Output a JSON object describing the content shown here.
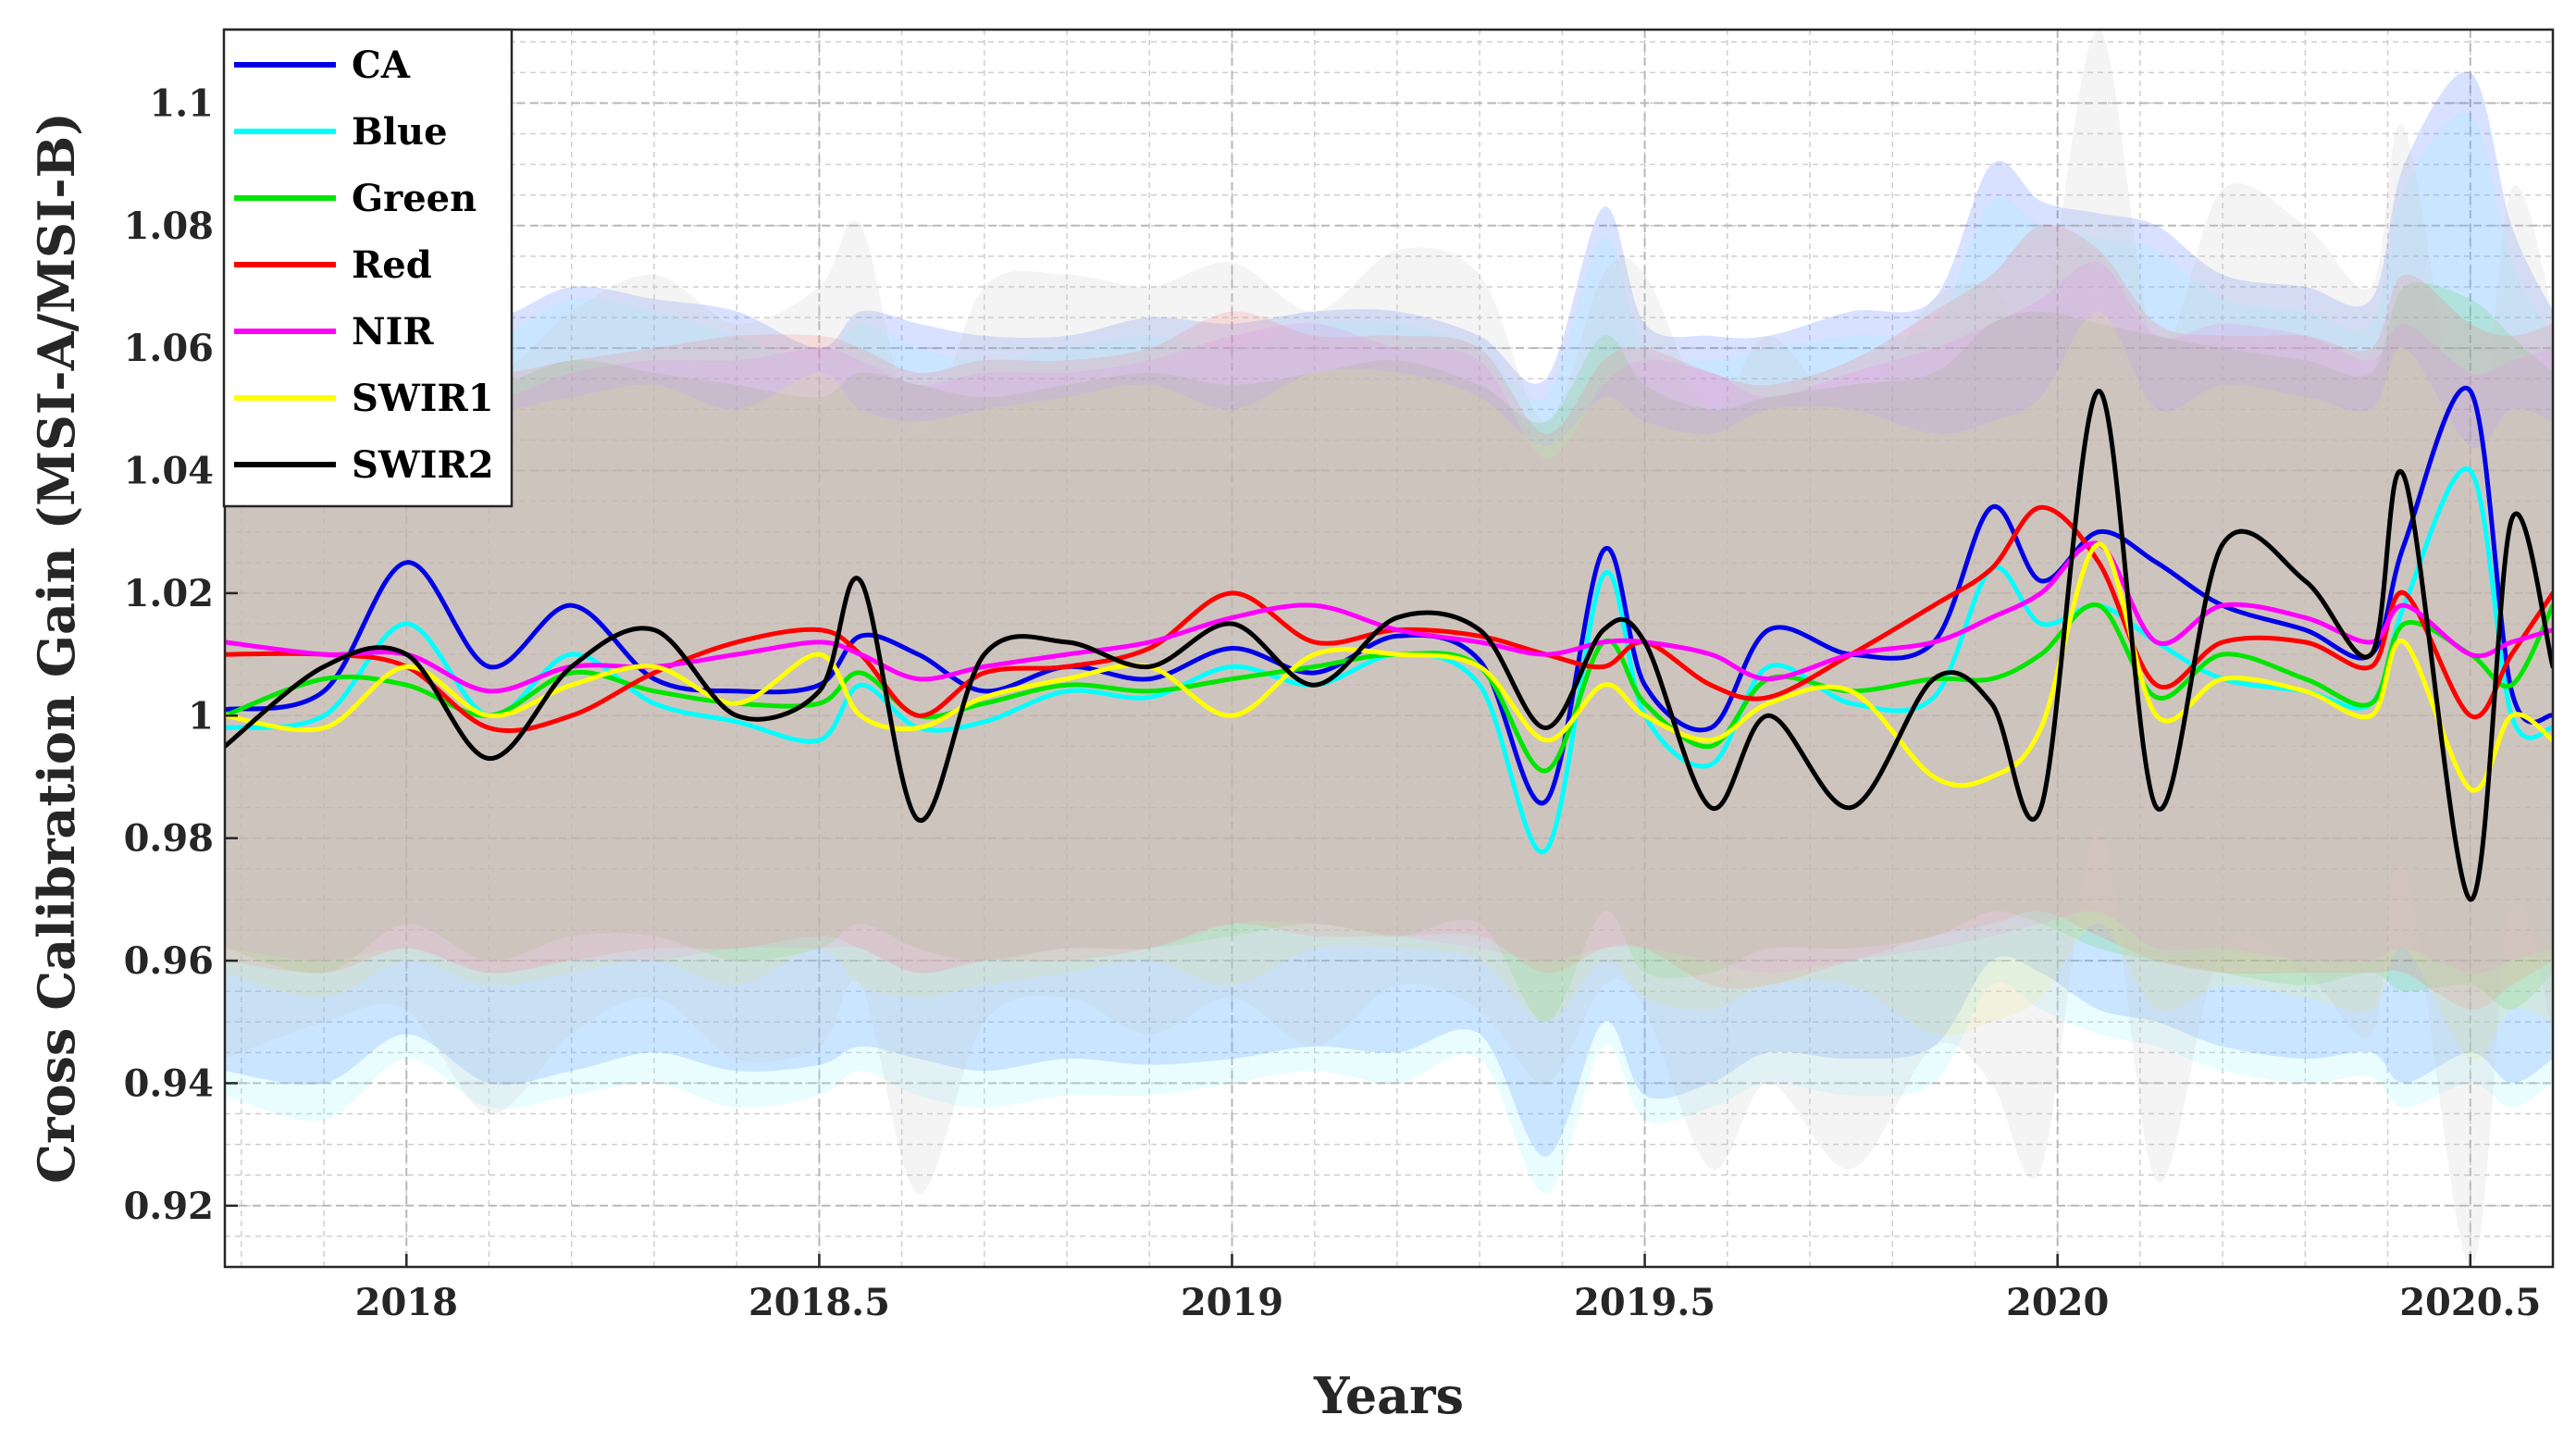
{
  "chart_data": {
    "type": "line",
    "title": "",
    "xlabel": "Years",
    "ylabel": "Cross Calibration Gain (MSI-A/MSI-B)",
    "xlim": [
      2017.78,
      2020.6
    ],
    "ylim": [
      0.91,
      1.112
    ],
    "grid": true,
    "legend_position": "top-left",
    "x_ticks": [
      2018,
      2018.5,
      2019,
      2019.5,
      2020,
      2020.5
    ],
    "x_tick_labels": [
      "2018",
      "2018.5",
      "2019",
      "2019.5",
      "2020",
      "2020.5"
    ],
    "y_ticks": [
      0.92,
      0.94,
      0.96,
      0.98,
      1.0,
      1.02,
      1.04,
      1.06,
      1.08,
      1.1
    ],
    "y_tick_labels": [
      "0.92",
      "0.94",
      "0.96",
      "0.98",
      "1",
      "1.02",
      "1.04",
      "1.06",
      "1.08",
      "1.1"
    ],
    "x": [
      2017.78,
      2017.9,
      2018.0,
      2018.1,
      2018.2,
      2018.3,
      2018.4,
      2018.5,
      2018.55,
      2018.62,
      2018.7,
      2018.8,
      2018.9,
      2019.0,
      2019.1,
      2019.2,
      2019.3,
      2019.38,
      2019.45,
      2019.5,
      2019.58,
      2019.65,
      2019.75,
      2019.85,
      2019.92,
      2019.98,
      2020.05,
      2020.12,
      2020.2,
      2020.3,
      2020.38,
      2020.42,
      2020.5,
      2020.55,
      2020.6
    ],
    "series": [
      {
        "name": "CA",
        "color": "#0000e6",
        "band_color": "#3d6bff",
        "values": [
          1.001,
          1.004,
          1.025,
          1.008,
          1.018,
          1.006,
          1.004,
          1.005,
          1.013,
          1.01,
          1.004,
          1.008,
          1.006,
          1.011,
          1.007,
          1.013,
          1.009,
          0.986,
          1.027,
          1.005,
          0.998,
          1.014,
          1.01,
          1.012,
          1.034,
          1.022,
          1.03,
          1.025,
          1.018,
          1.014,
          1.01,
          1.028,
          1.053,
          1.004,
          1.0
        ],
        "upper": [
          1.064,
          1.07,
          1.072,
          1.065,
          1.07,
          1.068,
          1.066,
          1.06,
          1.066,
          1.064,
          1.062,
          1.062,
          1.065,
          1.064,
          1.066,
          1.066,
          1.062,
          1.055,
          1.083,
          1.064,
          1.062,
          1.062,
          1.066,
          1.068,
          1.09,
          1.084,
          1.082,
          1.08,
          1.072,
          1.07,
          1.068,
          1.09,
          1.105,
          1.08,
          1.066
        ],
        "lower": [
          0.942,
          0.94,
          0.948,
          0.94,
          0.942,
          0.945,
          0.942,
          0.943,
          0.946,
          0.944,
          0.942,
          0.944,
          0.943,
          0.944,
          0.946,
          0.945,
          0.948,
          0.928,
          0.95,
          0.938,
          0.94,
          0.945,
          0.944,
          0.946,
          0.96,
          0.958,
          0.952,
          0.95,
          0.946,
          0.944,
          0.945,
          0.94,
          0.945,
          0.94,
          0.944
        ]
      },
      {
        "name": "Blue",
        "color": "#00ffff",
        "band_color": "#8ff5ff",
        "values": [
          0.998,
          1.0,
          1.015,
          1.0,
          1.01,
          1.002,
          0.999,
          0.996,
          1.005,
          0.998,
          0.999,
          1.004,
          1.003,
          1.008,
          1.005,
          1.01,
          1.005,
          0.978,
          1.023,
          1.0,
          0.992,
          1.008,
          1.002,
          1.003,
          1.024,
          1.015,
          1.018,
          1.012,
          1.006,
          1.004,
          1.002,
          1.018,
          1.04,
          1.0,
          0.998
        ],
        "upper": [
          1.06,
          1.066,
          1.07,
          1.062,
          1.068,
          1.066,
          1.062,
          1.058,
          1.064,
          1.06,
          1.058,
          1.06,
          1.062,
          1.06,
          1.064,
          1.064,
          1.06,
          1.052,
          1.078,
          1.06,
          1.058,
          1.06,
          1.062,
          1.064,
          1.084,
          1.08,
          1.078,
          1.076,
          1.068,
          1.066,
          1.064,
          1.086,
          1.098,
          1.074,
          1.062
        ],
        "lower": [
          0.938,
          0.934,
          0.944,
          0.936,
          0.938,
          0.94,
          0.936,
          0.938,
          0.942,
          0.938,
          0.936,
          0.938,
          0.938,
          0.94,
          0.942,
          0.94,
          0.944,
          0.922,
          0.946,
          0.934,
          0.936,
          0.94,
          0.938,
          0.94,
          0.956,
          0.952,
          0.948,
          0.946,
          0.942,
          0.94,
          0.941,
          0.936,
          0.94,
          0.936,
          0.94
        ]
      },
      {
        "name": "Green",
        "color": "#00e600",
        "band_color": "#57d957",
        "values": [
          1.0,
          1.006,
          1.005,
          1.0,
          1.007,
          1.004,
          1.002,
          1.002,
          1.007,
          1.0,
          1.002,
          1.005,
          1.004,
          1.006,
          1.008,
          1.01,
          1.008,
          0.991,
          1.012,
          1.002,
          0.995,
          1.006,
          1.004,
          1.006,
          1.006,
          1.01,
          1.018,
          1.003,
          1.01,
          1.006,
          1.002,
          1.015,
          1.01,
          1.005,
          1.018
        ],
        "upper": [
          1.052,
          1.056,
          1.058,
          1.054,
          1.058,
          1.056,
          1.054,
          1.052,
          1.056,
          1.054,
          1.052,
          1.054,
          1.056,
          1.054,
          1.056,
          1.058,
          1.054,
          1.048,
          1.062,
          1.054,
          1.05,
          1.052,
          1.054,
          1.056,
          1.064,
          1.066,
          1.064,
          1.062,
          1.06,
          1.058,
          1.056,
          1.07,
          1.068,
          1.062,
          1.056
        ],
        "lower": [
          0.962,
          0.958,
          0.966,
          0.96,
          0.964,
          0.964,
          0.96,
          0.962,
          0.966,
          0.962,
          0.96,
          0.962,
          0.962,
          0.964,
          0.966,
          0.964,
          0.966,
          0.95,
          0.968,
          0.958,
          0.958,
          0.962,
          0.962,
          0.964,
          0.968,
          0.966,
          0.962,
          0.96,
          0.958,
          0.956,
          0.958,
          0.955,
          0.956,
          0.952,
          0.958
        ]
      },
      {
        "name": "Red",
        "color": "#ff0000",
        "band_color": "#ff6f6f",
        "values": [
          1.01,
          1.01,
          1.008,
          0.998,
          1.0,
          1.007,
          1.012,
          1.014,
          1.01,
          1.0,
          1.007,
          1.008,
          1.011,
          1.02,
          1.012,
          1.014,
          1.013,
          1.01,
          1.008,
          1.012,
          1.005,
          1.003,
          1.01,
          1.018,
          1.024,
          1.034,
          1.025,
          1.005,
          1.012,
          1.012,
          1.008,
          1.02,
          1.0,
          1.01,
          1.02
        ],
        "upper": [
          1.058,
          1.06,
          1.06,
          1.056,
          1.058,
          1.06,
          1.062,
          1.062,
          1.06,
          1.056,
          1.058,
          1.058,
          1.06,
          1.066,
          1.062,
          1.062,
          1.06,
          1.046,
          1.058,
          1.06,
          1.056,
          1.054,
          1.058,
          1.066,
          1.072,
          1.08,
          1.076,
          1.064,
          1.062,
          1.062,
          1.06,
          1.072,
          1.064,
          1.062,
          1.064
        ],
        "lower": [
          0.96,
          0.958,
          0.962,
          0.958,
          0.96,
          0.962,
          0.962,
          0.964,
          0.962,
          0.958,
          0.96,
          0.96,
          0.962,
          0.966,
          0.964,
          0.964,
          0.964,
          0.958,
          0.962,
          0.962,
          0.956,
          0.956,
          0.96,
          0.964,
          0.966,
          0.968,
          0.964,
          0.96,
          0.958,
          0.958,
          0.958,
          0.958,
          0.952,
          0.956,
          0.96
        ]
      },
      {
        "name": "NIR",
        "color": "#ff00ff",
        "band_color": "#f27ff2",
        "values": [
          1.012,
          1.01,
          1.01,
          1.004,
          1.008,
          1.008,
          1.01,
          1.012,
          1.01,
          1.006,
          1.008,
          1.01,
          1.012,
          1.016,
          1.018,
          1.014,
          1.012,
          1.01,
          1.012,
          1.012,
          1.01,
          1.006,
          1.01,
          1.012,
          1.016,
          1.02,
          1.028,
          1.012,
          1.018,
          1.016,
          1.012,
          1.018,
          1.01,
          1.012,
          1.014
        ],
        "upper": [
          1.056,
          1.058,
          1.058,
          1.052,
          1.056,
          1.058,
          1.058,
          1.06,
          1.058,
          1.054,
          1.056,
          1.056,
          1.058,
          1.062,
          1.064,
          1.06,
          1.058,
          1.042,
          1.054,
          1.058,
          1.056,
          1.052,
          1.056,
          1.06,
          1.064,
          1.068,
          1.074,
          1.062,
          1.064,
          1.062,
          1.058,
          1.064,
          1.056,
          1.058,
          1.06
        ],
        "lower": [
          0.962,
          0.96,
          0.962,
          0.958,
          0.96,
          0.96,
          0.962,
          0.962,
          0.962,
          0.958,
          0.96,
          0.962,
          0.962,
          0.966,
          0.966,
          0.964,
          0.962,
          0.96,
          0.962,
          0.962,
          0.96,
          0.958,
          0.96,
          0.962,
          0.964,
          0.966,
          0.968,
          0.962,
          0.962,
          0.96,
          0.96,
          0.962,
          0.958,
          0.96,
          0.962
        ]
      },
      {
        "name": "SWIR1",
        "color": "#ffff00",
        "band_color": "#f0ee7a",
        "values": [
          1.0,
          0.998,
          1.008,
          1.0,
          1.005,
          1.008,
          1.002,
          1.01,
          1.0,
          0.998,
          1.003,
          1.006,
          1.008,
          1.0,
          1.01,
          1.01,
          1.008,
          0.996,
          1.005,
          1.0,
          0.996,
          1.002,
          1.004,
          0.99,
          0.99,
          0.998,
          1.028,
          1.0,
          1.006,
          1.004,
          1.0,
          1.012,
          0.988,
          1.0,
          0.996
        ],
        "upper": [
          1.05,
          1.048,
          1.054,
          1.05,
          1.052,
          1.054,
          1.05,
          1.056,
          1.05,
          1.048,
          1.05,
          1.052,
          1.054,
          1.05,
          1.056,
          1.056,
          1.052,
          1.044,
          1.052,
          1.048,
          1.046,
          1.05,
          1.05,
          1.046,
          1.048,
          1.052,
          1.066,
          1.05,
          1.054,
          1.052,
          1.05,
          1.06,
          1.044,
          1.05,
          1.048
        ],
        "lower": [
          0.958,
          0.954,
          0.96,
          0.956,
          0.958,
          0.96,
          0.956,
          0.962,
          0.956,
          0.954,
          0.956,
          0.958,
          0.96,
          0.956,
          0.962,
          0.962,
          0.96,
          0.95,
          0.96,
          0.954,
          0.952,
          0.956,
          0.956,
          0.948,
          0.95,
          0.954,
          0.966,
          0.952,
          0.956,
          0.954,
          0.952,
          0.962,
          0.944,
          0.952,
          0.95
        ]
      },
      {
        "name": "SWIR2",
        "color": "#000000",
        "band_color": "#c9c9c9",
        "values": [
          0.995,
          1.008,
          1.01,
          0.993,
          1.008,
          1.014,
          1.0,
          1.004,
          1.022,
          0.983,
          1.01,
          1.012,
          1.008,
          1.015,
          1.005,
          1.016,
          1.014,
          0.998,
          1.014,
          1.012,
          0.985,
          1.0,
          0.985,
          1.006,
          1.002,
          0.985,
          1.053,
          0.985,
          1.028,
          1.022,
          1.01,
          1.039,
          0.97,
          1.032,
          1.008
        ],
        "upper": [
          1.06,
          1.068,
          1.07,
          1.056,
          1.066,
          1.072,
          1.064,
          1.07,
          1.08,
          1.046,
          1.07,
          1.072,
          1.07,
          1.074,
          1.066,
          1.076,
          1.072,
          1.048,
          1.072,
          1.072,
          1.05,
          1.062,
          1.05,
          1.068,
          1.07,
          1.064,
          1.112,
          1.06,
          1.086,
          1.08,
          1.07,
          1.096,
          1.04,
          1.086,
          1.066
        ],
        "lower": [
          0.944,
          0.95,
          0.952,
          0.935,
          0.948,
          0.954,
          0.944,
          0.946,
          0.956,
          0.922,
          0.95,
          0.954,
          0.948,
          0.954,
          0.946,
          0.956,
          0.952,
          0.94,
          0.956,
          0.952,
          0.926,
          0.94,
          0.926,
          0.946,
          0.94,
          0.926,
          0.982,
          0.924,
          0.962,
          0.958,
          0.948,
          0.976,
          0.91,
          0.97,
          0.948
        ]
      }
    ]
  }
}
